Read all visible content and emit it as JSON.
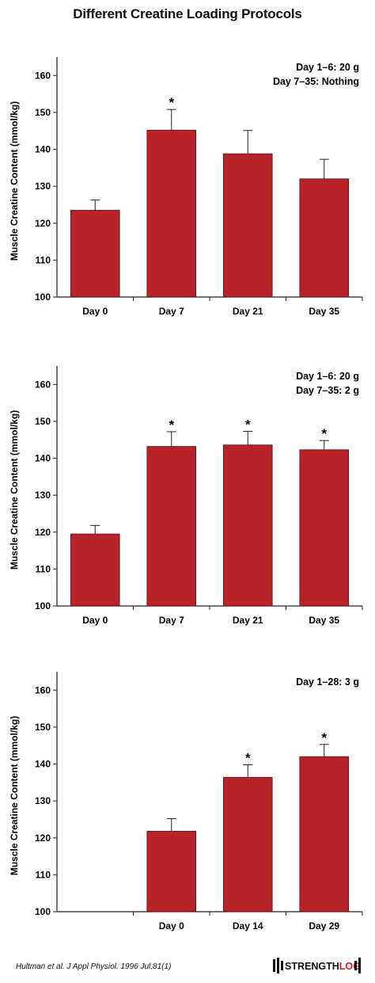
{
  "title": "Different Creatine Loading Protocols",
  "citation": "Hultman et al. J Appl Physiol. 1996 Jul;81(1)",
  "logo": {
    "text_strength": "STRENGTH",
    "text_log": "LOG"
  },
  "colors": {
    "bar": "#b8232a",
    "bar_stroke": "#5a1214",
    "axis": "#222222"
  },
  "chart_data": [
    {
      "type": "bar",
      "ylabel": "Muscle Creatine Content (mmol/kg)",
      "ylim": [
        100,
        165
      ],
      "yticks": [
        100,
        110,
        120,
        130,
        140,
        150,
        160
      ],
      "slots": 4,
      "categories": [
        "Day 0",
        "Day 7",
        "Day 21",
        "Day 35"
      ],
      "values": [
        123.5,
        145.2,
        138.8,
        132.0
      ],
      "errors": [
        2.8,
        5.6,
        6.3,
        5.3
      ],
      "significant": [
        false,
        true,
        false,
        false
      ],
      "annotations": [
        "Day 1–6: 20 g",
        "Day 7–35: Nothing"
      ]
    },
    {
      "type": "bar",
      "ylabel": "Muscle Creatine Content (mmol/kg)",
      "ylim": [
        100,
        165
      ],
      "yticks": [
        100,
        110,
        120,
        130,
        140,
        150,
        160
      ],
      "slots": 4,
      "categories": [
        "Day 0",
        "Day 7",
        "Day 21",
        "Day 35"
      ],
      "values": [
        119.5,
        143.2,
        143.6,
        142.3
      ],
      "errors": [
        2.3,
        4.0,
        3.7,
        2.5
      ],
      "significant": [
        false,
        true,
        true,
        true
      ],
      "annotations": [
        "Day 1–6: 20 g",
        "Day 7–35: 2 g"
      ]
    },
    {
      "type": "bar",
      "ylabel": "Muscle Creatine Content (mmol/kg)",
      "ylim": [
        100,
        165
      ],
      "yticks": [
        100,
        110,
        120,
        130,
        140,
        150,
        160
      ],
      "slots": 4,
      "categories": [
        "",
        "Day 0",
        "Day 14",
        "Day 29"
      ],
      "values": [
        null,
        121.8,
        136.4,
        142.0
      ],
      "errors": [
        null,
        3.4,
        3.4,
        3.3
      ],
      "significant": [
        false,
        false,
        true,
        true
      ],
      "annotations": [
        "Day 1–28: 3 g"
      ]
    }
  ]
}
